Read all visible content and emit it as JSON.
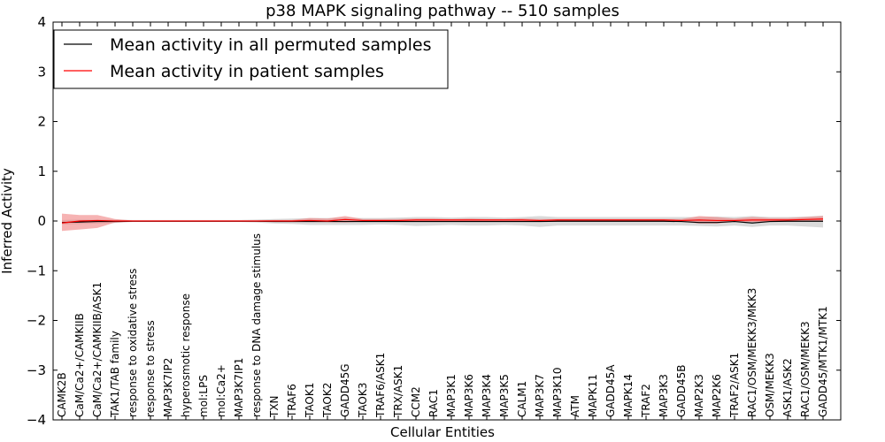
{
  "chart_data": {
    "type": "line",
    "title": "p38 MAPK signaling pathway -- 510 samples",
    "xlabel": "Cellular Entities",
    "ylabel": "Inferred Activity",
    "ylim": [
      -4,
      4
    ],
    "yticks": [
      "−4",
      "−3",
      "−2",
      "−1",
      "0",
      "1",
      "2",
      "3",
      "4"
    ],
    "ytick_values": [
      -4,
      -3,
      -2,
      -1,
      0,
      1,
      2,
      3,
      4
    ],
    "legend_position": "top-left",
    "categories": [
      "CAMK2B",
      "CaM/Ca2+/CAMKIIB",
      "CaM/Ca2+/CAMKIIB/ASK1",
      "TAK1/TAB family",
      "response to oxidative stress",
      "response to stress",
      "MAP3K7IP2",
      "hyperosmotic response",
      "mol:LPS",
      "mol:Ca2+",
      "MAP3K7IP1",
      "response to DNA damage stimulus",
      "TXN",
      "TRAF6",
      "TAOK1",
      "TAOK2",
      "GADD45G",
      "TAOK3",
      "TRAF6/ASK1",
      "TRX/ASK1",
      "CCM2",
      "RAC1",
      "MAP3K1",
      "MAP3K6",
      "MAP3K4",
      "MAP3K5",
      "CALM1",
      "MAP3K7",
      "MAP3K10",
      "ATM",
      "MAPK11",
      "GADD45A",
      "MAPK14",
      "TRAF2",
      "MAP3K3",
      "GADD45B",
      "MAP2K3",
      "MAP2K6",
      "TRAF2/ASK1",
      "RAC1/OSM/MEKK3/MKK3",
      "OSM/MEKK3",
      "ASK1/ASK2",
      "RAC1/OSM/MEKK3",
      "GADD45/MTK1/MTK1"
    ],
    "series": [
      {
        "name": "Mean activity in all permuted samples",
        "color": "#000000",
        "band_color": "#bbbbbb",
        "values": [
          -0.03,
          -0.02,
          -0.01,
          -0.01,
          -0.005,
          -0.005,
          -0.005,
          -0.005,
          -0.005,
          -0.005,
          -0.005,
          -0.005,
          -0.01,
          -0.01,
          -0.01,
          -0.01,
          -0.01,
          -0.01,
          -0.01,
          -0.01,
          -0.01,
          -0.01,
          -0.01,
          -0.01,
          -0.01,
          -0.01,
          -0.01,
          -0.01,
          -0.005,
          -0.005,
          -0.005,
          -0.005,
          -0.005,
          -0.005,
          -0.005,
          -0.01,
          -0.03,
          -0.03,
          -0.01,
          -0.04,
          -0.01,
          -0.005,
          -0.005,
          -0.005
        ],
        "band_low": [
          -0.07,
          -0.06,
          -0.05,
          -0.04,
          -0.02,
          -0.02,
          -0.02,
          -0.02,
          -0.02,
          -0.02,
          -0.02,
          -0.03,
          -0.05,
          -0.06,
          -0.08,
          -0.08,
          -0.08,
          -0.08,
          -0.07,
          -0.08,
          -0.1,
          -0.09,
          -0.08,
          -0.09,
          -0.09,
          -0.08,
          -0.09,
          -0.12,
          -0.09,
          -0.09,
          -0.09,
          -0.09,
          -0.09,
          -0.09,
          -0.09,
          -0.09,
          -0.1,
          -0.11,
          -0.09,
          -0.12,
          -0.09,
          -0.09,
          -0.11,
          -0.13
        ],
        "band_high": [
          0.02,
          0.03,
          0.03,
          0.03,
          0.02,
          0.02,
          0.02,
          0.02,
          0.02,
          0.02,
          0.02,
          0.03,
          0.04,
          0.05,
          0.06,
          0.06,
          0.07,
          0.06,
          0.06,
          0.07,
          0.08,
          0.08,
          0.07,
          0.08,
          0.08,
          0.07,
          0.08,
          0.1,
          0.08,
          0.08,
          0.08,
          0.08,
          0.08,
          0.08,
          0.08,
          0.08,
          0.08,
          0.09,
          0.08,
          0.1,
          0.08,
          0.08,
          0.09,
          0.11
        ]
      },
      {
        "name": "Mean activity in patient samples",
        "color": "#ff0000",
        "band_color": "#f08080",
        "values": [
          -0.04,
          0.0,
          0.01,
          0.0,
          0.0,
          0.0,
          0.0,
          0.0,
          0.0,
          0.0,
          0.0,
          0.0,
          0.0,
          0.0,
          0.01,
          0.0,
          0.03,
          0.01,
          0.01,
          0.01,
          0.02,
          0.02,
          0.02,
          0.02,
          0.02,
          0.02,
          0.02,
          0.01,
          0.02,
          0.02,
          0.02,
          0.02,
          0.02,
          0.02,
          0.02,
          0.01,
          0.02,
          0.01,
          0.01,
          0.02,
          0.02,
          0.02,
          0.03,
          0.04
        ],
        "band_low": [
          -0.2,
          -0.17,
          -0.14,
          -0.03,
          -0.01,
          -0.01,
          -0.01,
          -0.01,
          -0.01,
          -0.01,
          -0.01,
          -0.01,
          -0.01,
          -0.01,
          -0.02,
          -0.02,
          -0.03,
          -0.01,
          -0.01,
          -0.01,
          -0.01,
          -0.01,
          -0.01,
          -0.01,
          -0.01,
          -0.01,
          -0.01,
          -0.01,
          -0.01,
          -0.01,
          -0.01,
          -0.01,
          -0.01,
          -0.01,
          -0.01,
          -0.01,
          -0.05,
          -0.05,
          -0.01,
          -0.02,
          -0.01,
          -0.01,
          0.0,
          0.0
        ],
        "band_high": [
          0.15,
          0.12,
          0.12,
          0.04,
          0.01,
          0.01,
          0.01,
          0.01,
          0.01,
          0.01,
          0.01,
          0.01,
          0.02,
          0.02,
          0.06,
          0.05,
          0.1,
          0.04,
          0.04,
          0.04,
          0.05,
          0.05,
          0.04,
          0.05,
          0.04,
          0.04,
          0.05,
          0.04,
          0.04,
          0.04,
          0.04,
          0.04,
          0.04,
          0.04,
          0.04,
          0.04,
          0.1,
          0.08,
          0.05,
          0.08,
          0.06,
          0.06,
          0.08,
          0.1
        ]
      }
    ]
  }
}
